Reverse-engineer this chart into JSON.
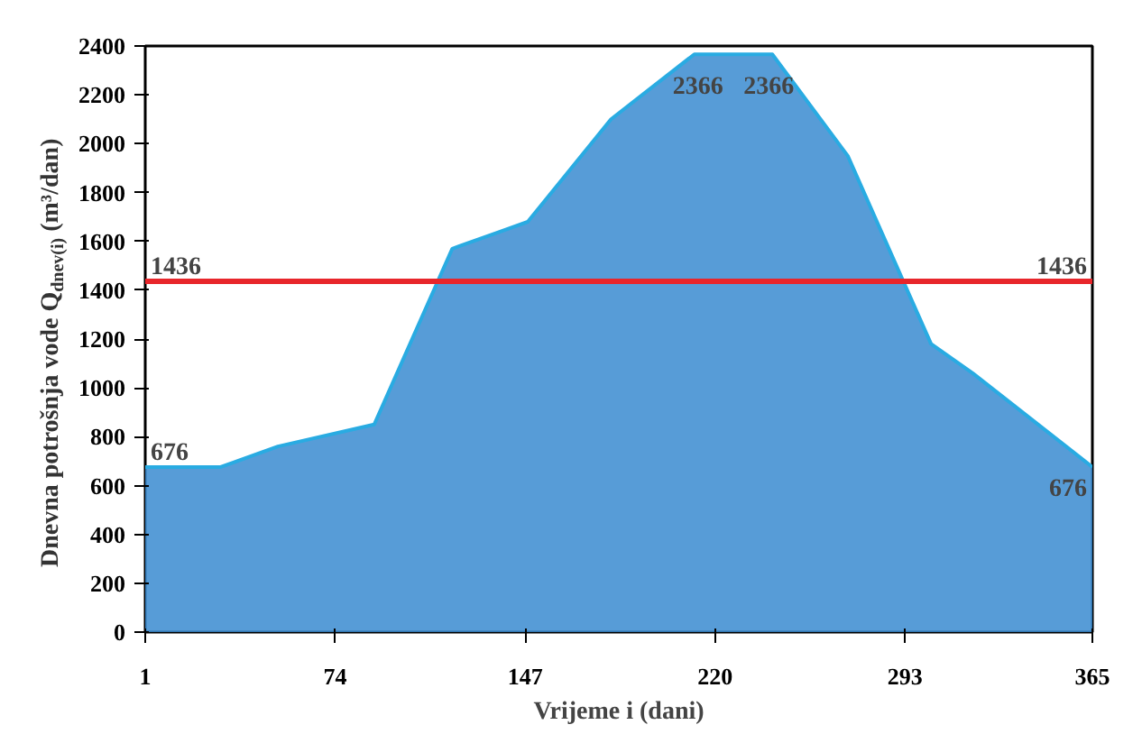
{
  "chart_data": {
    "type": "area",
    "xlabel": "Vrijeme i (dani)",
    "ylabel": "Dnevna potrošnja vode Q$_{dnev(i)}$ (m³/dan)",
    "x": [
      1,
      30,
      52,
      89,
      119,
      148,
      180,
      212,
      242,
      271,
      303,
      319,
      365
    ],
    "values": [
      676,
      676,
      760,
      850,
      1570,
      1680,
      2100,
      2366,
      2366,
      1950,
      1180,
      1060,
      676
    ],
    "color": "#3a8bd0",
    "xlim": [
      1,
      365
    ],
    "xticks": [
      1,
      74,
      147,
      220,
      293,
      365
    ],
    "ylim": [
      0,
      2400
    ],
    "yticks": [
      0,
      200,
      400,
      600,
      800,
      1000,
      1200,
      1400,
      1600,
      1800,
      2000,
      2200,
      2400
    ],
    "grid": false,
    "ref_lines": [
      {
        "axis": "y",
        "value": 1436,
        "label": "1436",
        "color": "#e8262b"
      }
    ],
    "annotations": [
      {
        "text": "2366",
        "x": 212,
        "y": 2366
      },
      {
        "text": "2366",
        "x": 242,
        "y": 2366
      },
      {
        "text": "676",
        "x": 1,
        "y": 676
      },
      {
        "text": "676",
        "x": 365,
        "y": 676
      }
    ]
  }
}
